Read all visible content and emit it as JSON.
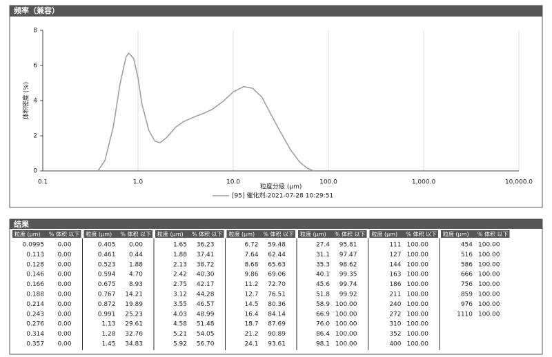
{
  "chart_data": {
    "type": "line",
    "title": "频率（兼容）",
    "x_label": "粒度分级 (μm)",
    "y_label": "体积密度 (%)",
    "log_x": true,
    "grid": true,
    "xlim": [
      0.1,
      10000
    ],
    "xticks": [
      0.1,
      {
        "value": 1,
        "label": "1.0"
      },
      {
        "value": 10,
        "label": "10.0"
      },
      {
        "value": 100,
        "label": "100.0"
      },
      {
        "value": 1000,
        "label": "1,000.0"
      },
      {
        "value": 10000,
        "label": "10,000.0"
      }
    ],
    "ylim": [
      0,
      8
    ],
    "yticks": [
      0,
      2,
      4,
      6,
      8
    ],
    "series": [
      {
        "name": "[95] 催化剂-2021-07-28 10:29:51",
        "color": "#a0a0a0",
        "x": [
          0.38,
          0.45,
          0.55,
          0.65,
          0.75,
          0.8,
          0.9,
          1.0,
          1.1,
          1.3,
          1.5,
          1.7,
          2.0,
          2.5,
          3,
          4,
          5,
          6,
          8,
          10,
          13,
          16,
          20,
          25,
          30,
          40,
          50,
          60,
          70
        ],
        "values": [
          0,
          0.6,
          2.5,
          5.0,
          6.5,
          6.7,
          6.4,
          5.3,
          3.8,
          2.3,
          1.7,
          1.6,
          1.9,
          2.5,
          2.8,
          3.1,
          3.3,
          3.5,
          4.0,
          4.5,
          4.8,
          4.7,
          4.2,
          3.2,
          2.4,
          1.2,
          0.5,
          0.15,
          0
        ]
      }
    ]
  },
  "results": {
    "title": "结果",
    "headers": [
      "粒度 (μm)",
      "% 体积 以下"
    ],
    "groups": [
      [
        [
          "0.0995",
          "0.00"
        ],
        [
          "0.113",
          "0.00"
        ],
        [
          "0.128",
          "0.00"
        ],
        [
          "0.146",
          "0.00"
        ],
        [
          "0.166",
          "0.00"
        ],
        [
          "0.188",
          "0.00"
        ],
        [
          "0.214",
          "0.00"
        ],
        [
          "0.243",
          "0.00"
        ],
        [
          "0.276",
          "0.00"
        ],
        [
          "0.314",
          "0.00"
        ],
        [
          "0.357",
          "0.00"
        ]
      ],
      [
        [
          "0.405",
          "0.00"
        ],
        [
          "0.461",
          "0.44"
        ],
        [
          "0.523",
          "1.88"
        ],
        [
          "0.594",
          "4.70"
        ],
        [
          "0.675",
          "8.93"
        ],
        [
          "0.767",
          "14.21"
        ],
        [
          "0.872",
          "19.89"
        ],
        [
          "0.991",
          "25.23"
        ],
        [
          "1.13",
          "29.61"
        ],
        [
          "1.28",
          "32.76"
        ],
        [
          "1.45",
          "34.83"
        ]
      ],
      [
        [
          "1.65",
          "36.23"
        ],
        [
          "1.88",
          "37.41"
        ],
        [
          "2.13",
          "38.72"
        ],
        [
          "2.42",
          "40.30"
        ],
        [
          "2.75",
          "42.17"
        ],
        [
          "3.12",
          "44.28"
        ],
        [
          "3.55",
          "46.57"
        ],
        [
          "4.03",
          "48.99"
        ],
        [
          "4.58",
          "51.48"
        ],
        [
          "5.21",
          "54.05"
        ],
        [
          "5.92",
          "56.70"
        ]
      ],
      [
        [
          "6.72",
          "59.48"
        ],
        [
          "7.64",
          "62.44"
        ],
        [
          "8.68",
          "65.63"
        ],
        [
          "9.86",
          "69.06"
        ],
        [
          "11.2",
          "72.70"
        ],
        [
          "12.7",
          "76.51"
        ],
        [
          "14.5",
          "80.36"
        ],
        [
          "16.4",
          "84.14"
        ],
        [
          "18.7",
          "87.69"
        ],
        [
          "21.2",
          "90.89"
        ],
        [
          "24.1",
          "93.61"
        ]
      ],
      [
        [
          "27.4",
          "95.81"
        ],
        [
          "31.1",
          "97.47"
        ],
        [
          "35.3",
          "98.62"
        ],
        [
          "40.1",
          "99.35"
        ],
        [
          "45.6",
          "99.74"
        ],
        [
          "51.8",
          "99.92"
        ],
        [
          "58.9",
          "100.00"
        ],
        [
          "66.9",
          "100.00"
        ],
        [
          "76.0",
          "100.00"
        ],
        [
          "86.4",
          "100.00"
        ],
        [
          "98.1",
          "100.00"
        ]
      ],
      [
        [
          "111",
          "100.00"
        ],
        [
          "127",
          "100.00"
        ],
        [
          "144",
          "100.00"
        ],
        [
          "163",
          "100.00"
        ],
        [
          "186",
          "100.00"
        ],
        [
          "211",
          "100.00"
        ],
        [
          "240",
          "100.00"
        ],
        [
          "272",
          "100.00"
        ],
        [
          "310",
          "100.00"
        ],
        [
          "352",
          "100.00"
        ],
        [
          "400",
          "100.00"
        ]
      ],
      [
        [
          "454",
          "100.00"
        ],
        [
          "516",
          "100.00"
        ],
        [
          "586",
          "100.00"
        ],
        [
          "666",
          "100.00"
        ],
        [
          "756",
          "100.00"
        ],
        [
          "859",
          "100.00"
        ],
        [
          "976",
          "100.00"
        ],
        [
          "1110",
          "100.00"
        ]
      ]
    ]
  }
}
